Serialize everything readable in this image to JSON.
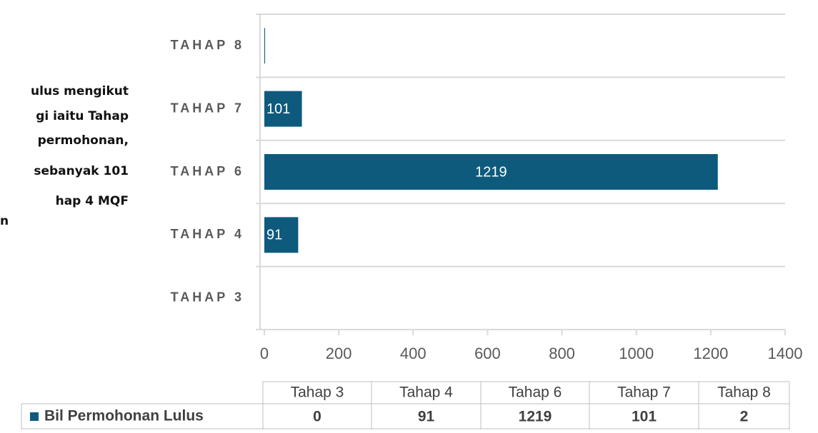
{
  "side_text": [
    "ulus mengikut",
    "gi iaitu Tahap",
    "permohonan,",
    "sebanyak 101",
    "hap 4 MQF",
    "n"
  ],
  "chart_data": {
    "type": "hbar",
    "categories": [
      "TAHAP 3",
      "TAHAP 4",
      "TAHAP 6",
      "TAHAP 7",
      "TAHAP 8"
    ],
    "table_header": [
      "Tahap 3",
      "Tahap 4",
      "Tahap 6",
      "Tahap 7",
      "Tahap 8"
    ],
    "series": [
      {
        "name": "Bil Permohonan Lulus",
        "color": "#0e5a7d",
        "values": [
          0,
          91,
          1219,
          101,
          2
        ]
      }
    ],
    "xlim": [
      0,
      1400
    ],
    "xticks": [
      0,
      200,
      400,
      600,
      800,
      1000,
      1200,
      1400
    ],
    "grid": true
  }
}
